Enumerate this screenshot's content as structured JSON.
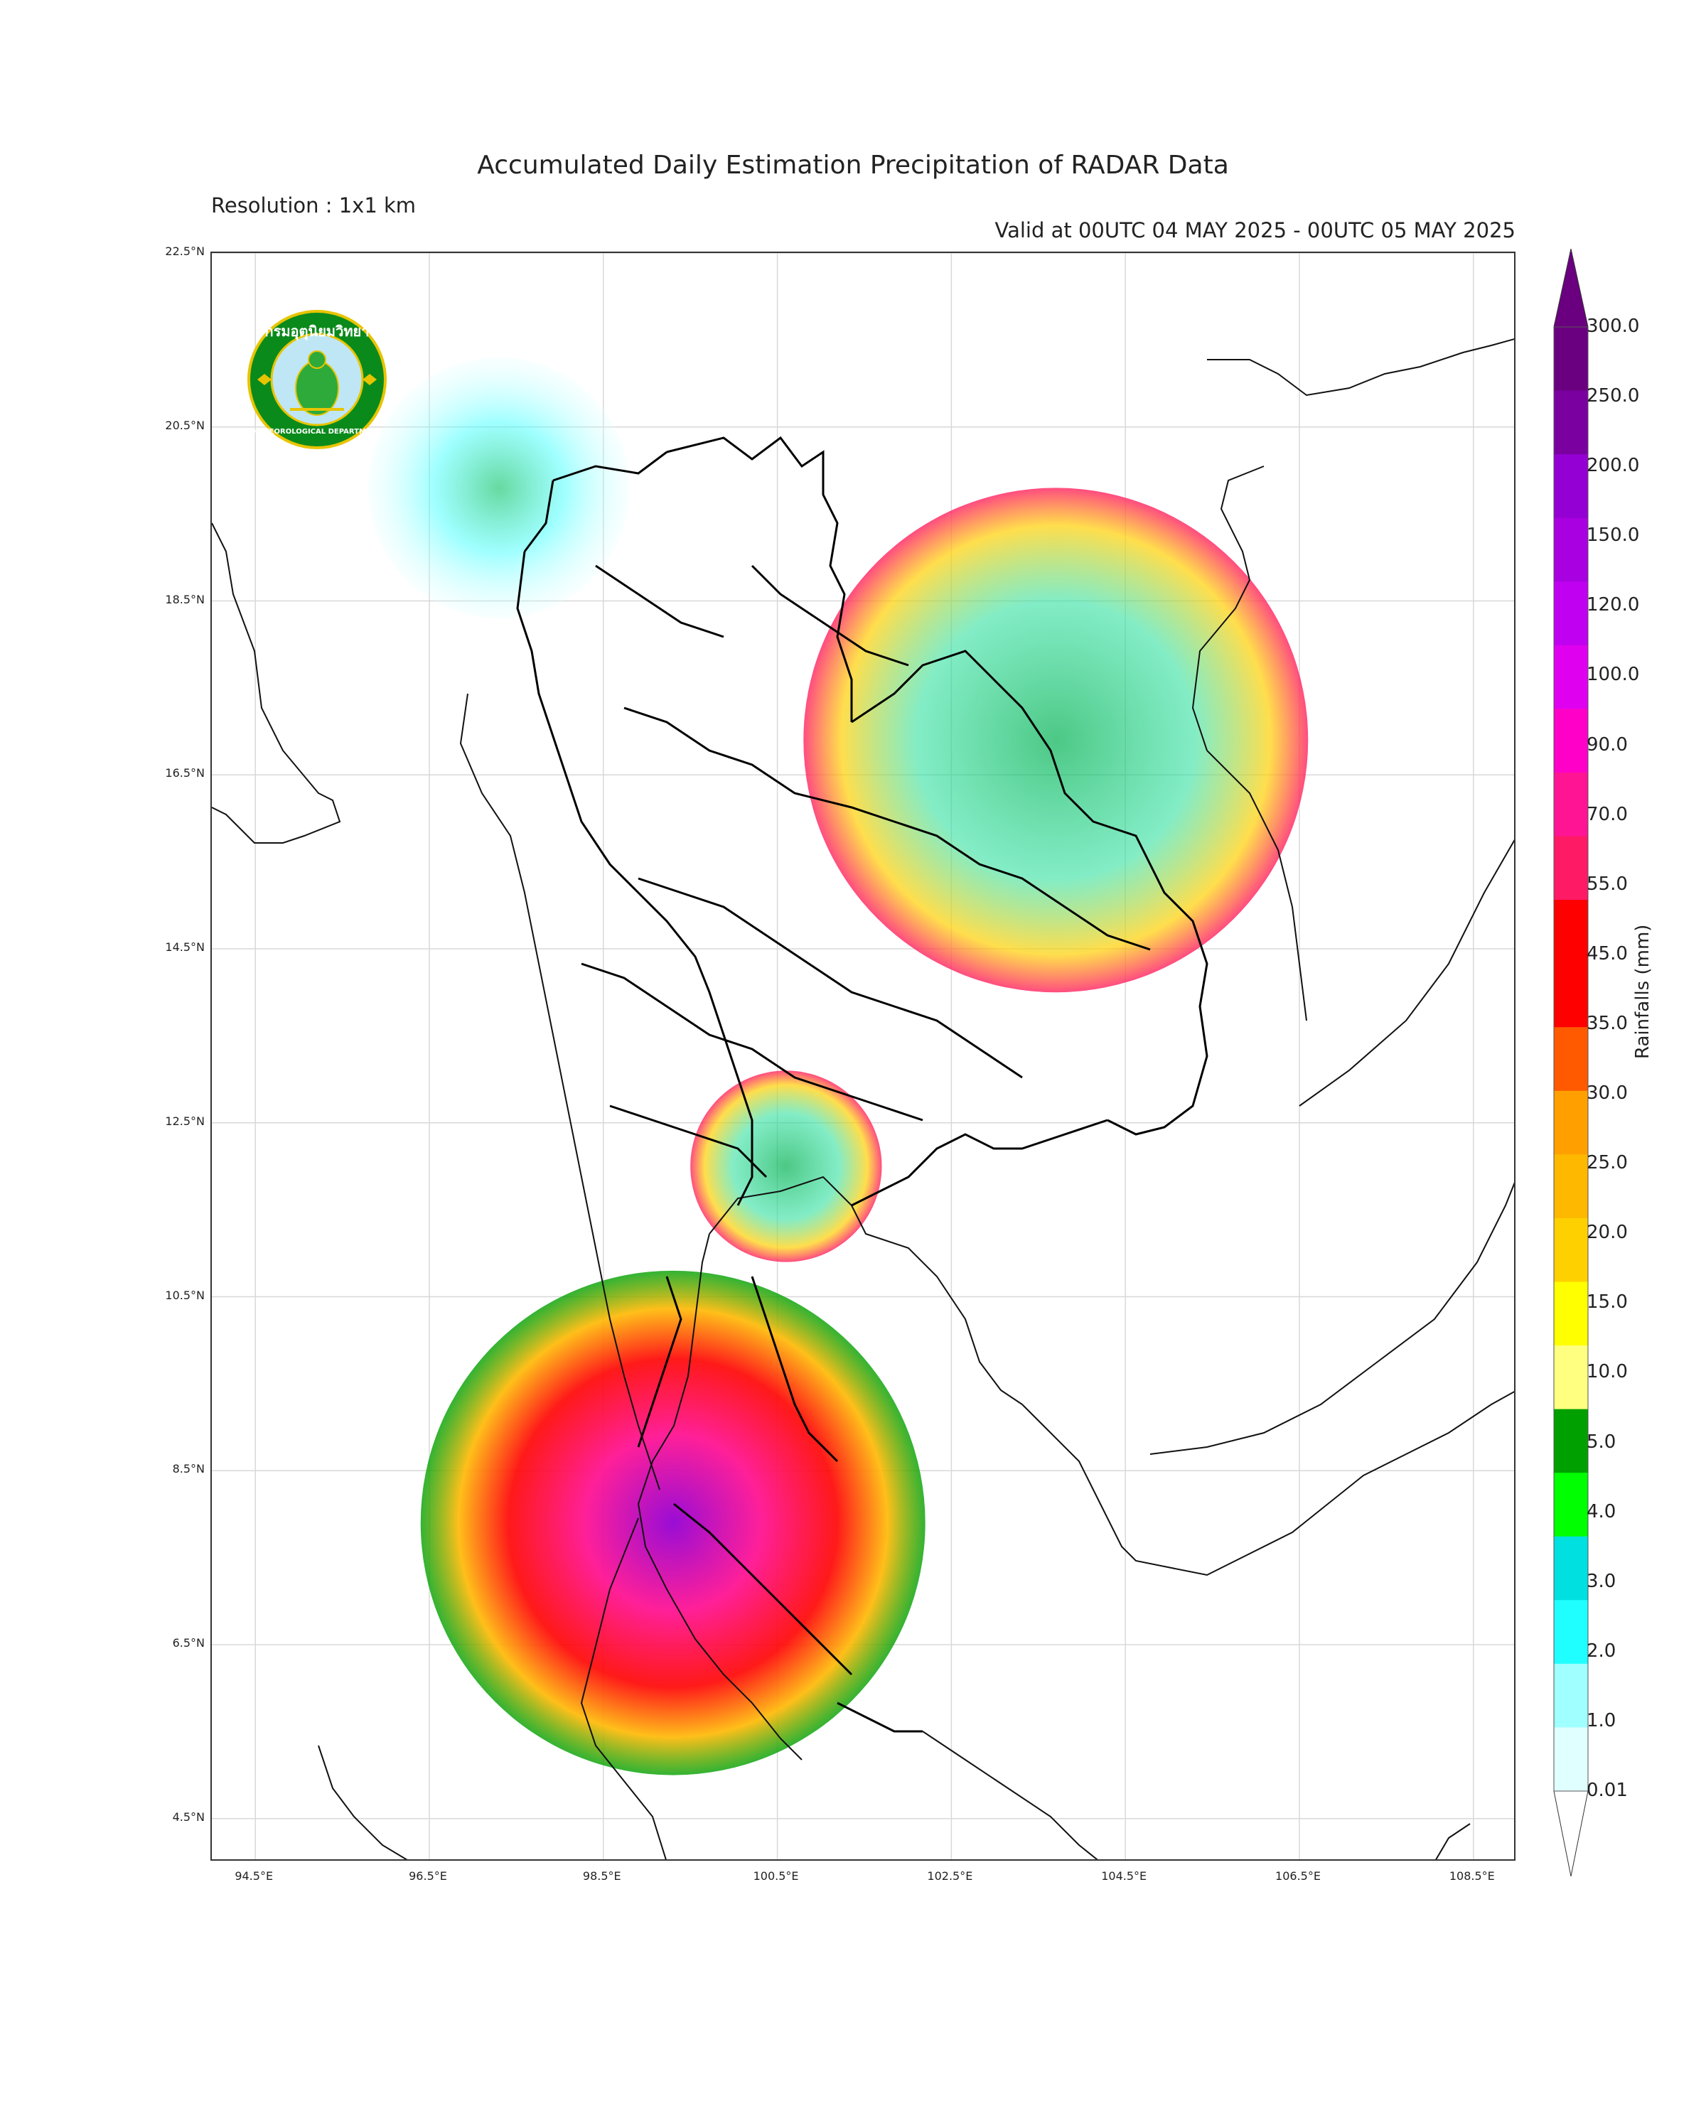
{
  "title": "Accumulated Daily Estimation Precipitation of RADAR Data",
  "resolution": "Resolution : 1x1 km",
  "valid_time": "Valid at 00UTC 04 MAY 2025 - 00UTC 05 MAY 2025",
  "logo": {
    "top_text": "กรมอุตุนิยมวิทยา",
    "bottom_text": "METEOROLOGICAL DEPARTMENT"
  },
  "map": {
    "lat_range": [
      4.0,
      22.5
    ],
    "lon_range": [
      94.0,
      109.0
    ],
    "lat_ticks": [
      "22.5°N",
      "20.5°N",
      "18.5°N",
      "16.5°N",
      "14.5°N",
      "12.5°N",
      "10.5°N",
      "8.5°N",
      "6.5°N",
      "4.5°N"
    ],
    "lon_ticks": [
      "94.5°E",
      "96.5°E",
      "98.5°E",
      "100.5°E",
      "102.5°E",
      "104.5°E",
      "106.5°E",
      "108.5°E"
    ],
    "lat_values": [
      22.5,
      20.5,
      18.5,
      16.5,
      14.5,
      12.5,
      10.5,
      8.5,
      6.5,
      4.5
    ],
    "lon_values": [
      94.5,
      96.5,
      98.5,
      100.5,
      102.5,
      104.5,
      106.5,
      108.5
    ],
    "grid": true,
    "radars": [
      {
        "name": "north-west",
        "lat": 19.8,
        "lon": 97.3,
        "radius_deg": 1.5,
        "intensity": "low"
      },
      {
        "name": "north-east",
        "lat": 16.9,
        "lon": 103.7,
        "radius_deg": 2.9,
        "intensity": "moderate"
      },
      {
        "name": "east-gulf",
        "lat": 12.0,
        "lon": 100.6,
        "radius_deg": 1.1,
        "intensity": "moderate"
      },
      {
        "name": "south",
        "lat": 7.9,
        "lon": 99.3,
        "radius_deg": 2.9,
        "intensity": "heavy"
      }
    ]
  },
  "colorbar": {
    "label": "Rainfalls (mm)",
    "tick_labels": [
      "300.0",
      "250.0",
      "200.0",
      "150.0",
      "120.0",
      "100.0",
      "90.0",
      "70.0",
      "55.0",
      "45.0",
      "35.0",
      "30.0",
      "25.0",
      "20.0",
      "15.0",
      "10.0",
      "5.0",
      "4.0",
      "3.0",
      "2.0",
      "1.0",
      "0.01"
    ],
    "colors": [
      "#6a0080",
      "#7a00a0",
      "#9400d3",
      "#a800e0",
      "#c000f0",
      "#e000f0",
      "#ff00c8",
      "#ff1493",
      "#ff1a66",
      "#ff0000",
      "#ff0000",
      "#ff5a00",
      "#ffa000",
      "#ffb800",
      "#ffd000",
      "#ffff00",
      "#ffff80",
      "#00a000",
      "#00ff00",
      "#00e0e0",
      "#20ffff",
      "#a0ffff",
      "#e0ffff"
    ],
    "extend": "both"
  }
}
